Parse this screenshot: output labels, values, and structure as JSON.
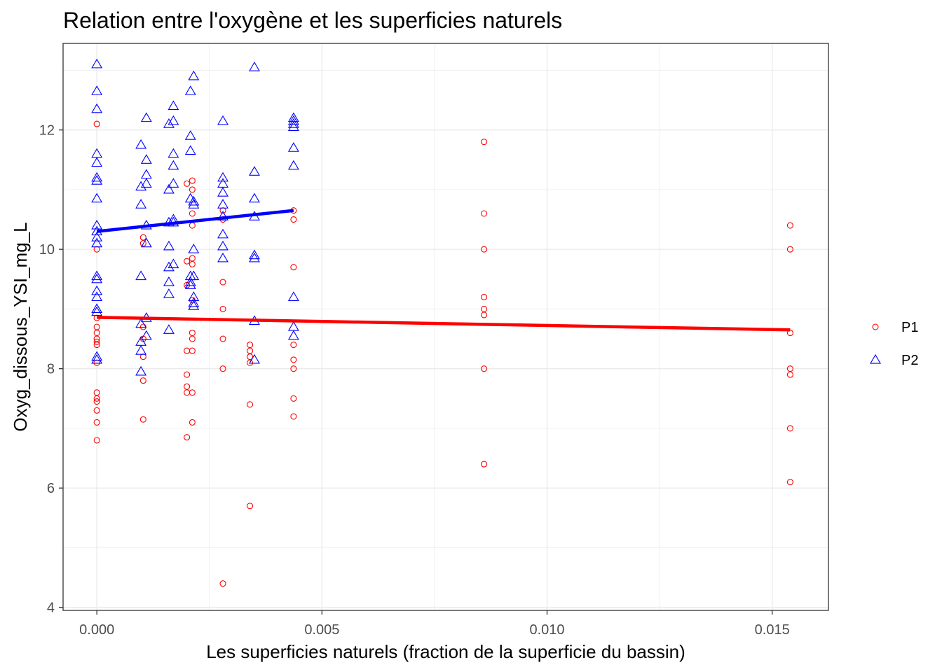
{
  "chart_data": {
    "type": "scatter",
    "title": "Relation entre l'oxygène et les superficies naturels",
    "xlabel": "Les superficies naturels (fraction de la superficie du bassin)",
    "ylabel": "Oxyg_dissous_YSI_mg_L",
    "xlim": [
      -0.00075,
      0.01625
    ],
    "ylim": [
      3.95,
      13.45
    ],
    "x_ticks": [
      0.0,
      0.005,
      0.01,
      0.015
    ],
    "x_tick_labels": [
      "0.000",
      "0.005",
      "0.010",
      "0.015"
    ],
    "y_ticks": [
      4,
      6,
      8,
      10,
      12
    ],
    "y_tick_labels": [
      "4",
      "6",
      "8",
      "10",
      "12"
    ],
    "grid": true,
    "legend_position": "right",
    "series": [
      {
        "name": "P1",
        "color": "#ff0000",
        "marker": "circle",
        "points": [
          [
            0.0,
            12.1
          ],
          [
            0.0,
            10.0
          ],
          [
            0.0,
            8.85
          ],
          [
            0.0,
            8.7
          ],
          [
            0.0,
            8.6
          ],
          [
            0.0,
            8.5
          ],
          [
            0.0,
            8.45
          ],
          [
            0.0,
            8.4
          ],
          [
            0.0,
            8.1
          ],
          [
            0.0,
            7.6
          ],
          [
            0.0,
            7.5
          ],
          [
            0.0,
            7.45
          ],
          [
            0.0,
            7.3
          ],
          [
            0.0,
            7.1
          ],
          [
            0.0,
            6.8
          ],
          [
            0.00103,
            10.2
          ],
          [
            0.00103,
            10.1
          ],
          [
            0.00103,
            8.7
          ],
          [
            0.00103,
            8.5
          ],
          [
            0.00103,
            8.2
          ],
          [
            0.00103,
            7.8
          ],
          [
            0.00103,
            7.15
          ],
          [
            0.002,
            11.1
          ],
          [
            0.002,
            9.8
          ],
          [
            0.002,
            9.4
          ],
          [
            0.002,
            8.3
          ],
          [
            0.002,
            7.9
          ],
          [
            0.002,
            7.7
          ],
          [
            0.002,
            7.6
          ],
          [
            0.002,
            6.85
          ],
          [
            0.00212,
            11.15
          ],
          [
            0.00212,
            11.0
          ],
          [
            0.00212,
            10.6
          ],
          [
            0.00212,
            10.4
          ],
          [
            0.00212,
            9.85
          ],
          [
            0.00212,
            9.75
          ],
          [
            0.00212,
            9.15
          ],
          [
            0.00212,
            8.6
          ],
          [
            0.00212,
            8.5
          ],
          [
            0.00212,
            8.3
          ],
          [
            0.00212,
            7.6
          ],
          [
            0.00212,
            7.1
          ],
          [
            0.0028,
            10.65
          ],
          [
            0.0028,
            10.5
          ],
          [
            0.0028,
            9.45
          ],
          [
            0.0028,
            9.0
          ],
          [
            0.0028,
            8.5
          ],
          [
            0.0028,
            8.0
          ],
          [
            0.0028,
            4.4
          ],
          [
            0.0034,
            8.4
          ],
          [
            0.0034,
            8.3
          ],
          [
            0.0034,
            8.2
          ],
          [
            0.0034,
            8.1
          ],
          [
            0.0034,
            7.4
          ],
          [
            0.0034,
            5.7
          ],
          [
            0.00437,
            10.65
          ],
          [
            0.00437,
            10.5
          ],
          [
            0.00437,
            9.7
          ],
          [
            0.00437,
            8.4
          ],
          [
            0.00437,
            8.15
          ],
          [
            0.00437,
            8.0
          ],
          [
            0.00437,
            7.5
          ],
          [
            0.00437,
            7.2
          ],
          [
            0.0086,
            11.8
          ],
          [
            0.0086,
            10.6
          ],
          [
            0.0086,
            10.0
          ],
          [
            0.0086,
            9.2
          ],
          [
            0.0086,
            9.0
          ],
          [
            0.0086,
            8.9
          ],
          [
            0.0086,
            8.0
          ],
          [
            0.0086,
            6.4
          ],
          [
            0.0154,
            10.4
          ],
          [
            0.0154,
            10.0
          ],
          [
            0.0154,
            8.6
          ],
          [
            0.0154,
            8.0
          ],
          [
            0.0154,
            7.9
          ],
          [
            0.0154,
            7.0
          ],
          [
            0.0154,
            6.1
          ]
        ],
        "fit": {
          "x": [
            0.0,
            0.0154
          ],
          "y": [
            8.86,
            8.65
          ]
        }
      },
      {
        "name": "P2",
        "color": "#0000ff",
        "marker": "triangle",
        "points": [
          [
            0.0,
            13.1
          ],
          [
            0.0,
            12.65
          ],
          [
            0.0,
            12.35
          ],
          [
            0.0,
            11.6
          ],
          [
            0.0,
            11.45
          ],
          [
            0.0,
            11.2
          ],
          [
            0.0,
            11.15
          ],
          [
            0.0,
            10.85
          ],
          [
            0.0,
            10.4
          ],
          [
            0.0,
            10.3
          ],
          [
            0.0,
            10.2
          ],
          [
            0.0,
            10.1
          ],
          [
            0.0,
            9.55
          ],
          [
            0.0,
            9.5
          ],
          [
            0.0,
            9.3
          ],
          [
            0.0,
            9.2
          ],
          [
            0.0,
            9.0
          ],
          [
            0.0,
            8.95
          ],
          [
            0.0,
            8.2
          ],
          [
            0.0,
            8.15
          ],
          [
            0.00098,
            11.75
          ],
          [
            0.00098,
            11.05
          ],
          [
            0.00098,
            10.75
          ],
          [
            0.00098,
            9.55
          ],
          [
            0.00098,
            8.75
          ],
          [
            0.00098,
            8.45
          ],
          [
            0.00098,
            8.3
          ],
          [
            0.00098,
            7.95
          ],
          [
            0.0011,
            12.2
          ],
          [
            0.0011,
            11.5
          ],
          [
            0.0011,
            11.25
          ],
          [
            0.0011,
            11.1
          ],
          [
            0.0011,
            10.4
          ],
          [
            0.0011,
            10.1
          ],
          [
            0.0011,
            8.85
          ],
          [
            0.0011,
            8.55
          ],
          [
            0.0016,
            12.1
          ],
          [
            0.0016,
            11.0
          ],
          [
            0.0016,
            10.45
          ],
          [
            0.0016,
            10.05
          ],
          [
            0.0016,
            9.7
          ],
          [
            0.0016,
            9.45
          ],
          [
            0.0016,
            9.25
          ],
          [
            0.0016,
            8.65
          ],
          [
            0.0017,
            12.4
          ],
          [
            0.0017,
            12.15
          ],
          [
            0.0017,
            11.6
          ],
          [
            0.0017,
            11.4
          ],
          [
            0.0017,
            11.1
          ],
          [
            0.0017,
            10.5
          ],
          [
            0.0017,
            10.45
          ],
          [
            0.0017,
            9.75
          ],
          [
            0.00208,
            12.65
          ],
          [
            0.00208,
            11.9
          ],
          [
            0.00208,
            11.65
          ],
          [
            0.00208,
            10.85
          ],
          [
            0.00208,
            9.55
          ],
          [
            0.00208,
            9.45
          ],
          [
            0.00208,
            9.4
          ],
          [
            0.00215,
            12.9
          ],
          [
            0.00215,
            10.8
          ],
          [
            0.00215,
            10.75
          ],
          [
            0.00215,
            10.0
          ],
          [
            0.00215,
            9.55
          ],
          [
            0.00215,
            9.2
          ],
          [
            0.00215,
            9.1
          ],
          [
            0.00215,
            9.05
          ],
          [
            0.0028,
            12.15
          ],
          [
            0.0028,
            11.2
          ],
          [
            0.0028,
            11.1
          ],
          [
            0.0028,
            10.95
          ],
          [
            0.0028,
            10.75
          ],
          [
            0.0028,
            10.55
          ],
          [
            0.0028,
            10.25
          ],
          [
            0.0028,
            10.05
          ],
          [
            0.0028,
            9.85
          ],
          [
            0.0035,
            13.05
          ],
          [
            0.0035,
            11.3
          ],
          [
            0.0035,
            10.85
          ],
          [
            0.0035,
            10.55
          ],
          [
            0.0035,
            9.9
          ],
          [
            0.0035,
            9.85
          ],
          [
            0.0035,
            8.8
          ],
          [
            0.0035,
            8.15
          ],
          [
            0.00437,
            12.2
          ],
          [
            0.00437,
            12.15
          ],
          [
            0.00437,
            12.1
          ],
          [
            0.00437,
            12.05
          ],
          [
            0.00437,
            11.7
          ],
          [
            0.00437,
            11.4
          ],
          [
            0.00437,
            9.2
          ],
          [
            0.00437,
            8.7
          ],
          [
            0.00437,
            8.55
          ]
        ],
        "fit": {
          "x": [
            0.0,
            0.00437
          ],
          "y": [
            10.3,
            10.65
          ]
        }
      }
    ]
  }
}
